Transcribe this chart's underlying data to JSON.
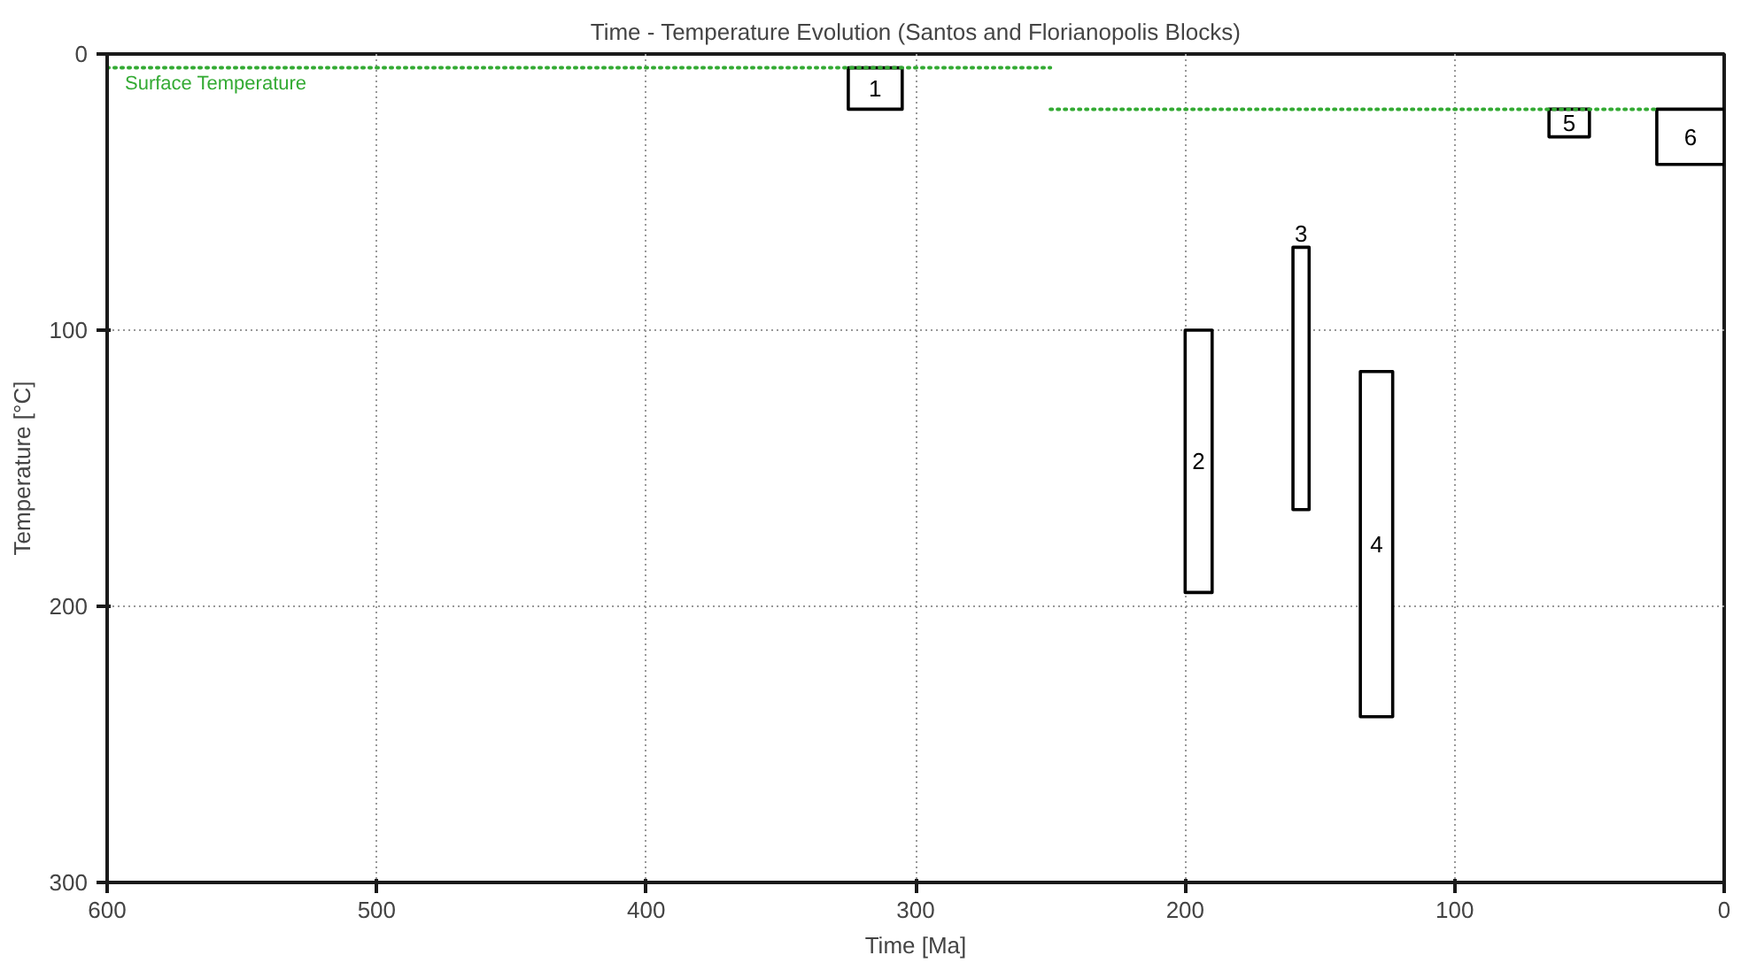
{
  "chart_data": {
    "type": "line",
    "title": "Time - Temperature Evolution (Santos and Florianopolis Blocks)",
    "xlabel": "Time [Ma]",
    "ylabel": "Temperature [°C]",
    "xlim": [
      600,
      0
    ],
    "ylim": [
      300,
      0
    ],
    "xticks": [
      600,
      500,
      400,
      300,
      200,
      100,
      0
    ],
    "yticks": [
      0,
      100,
      200,
      300
    ],
    "grid": true,
    "legend": false,
    "marker": "none",
    "series": [
      {
        "name": "Surface Temperature",
        "color": "#33aa33",
        "line_style": "dotted",
        "x": [
          600,
          250
        ],
        "values": [
          5,
          5
        ]
      },
      {
        "color": "#33aa33",
        "line_style": "dotted",
        "x": [
          250,
          25
        ],
        "values": [
          20,
          20
        ]
      },
      {
        "name": "1",
        "color": "#000000",
        "x": [
          325,
          305
        ],
        "values": [
          null,
          null
        ],
        "lower": [
          5,
          5
        ],
        "upper": [
          20,
          20
        ]
      },
      {
        "name": "2",
        "color": "#000000",
        "x": [
          200,
          190
        ],
        "values": [
          null,
          null
        ],
        "lower": [
          100,
          100
        ],
        "upper": [
          195,
          195
        ]
      },
      {
        "name": "3",
        "color": "#000000",
        "x": [
          160,
          154
        ],
        "values": [
          null,
          null
        ],
        "lower": [
          70,
          70
        ],
        "upper": [
          165,
          165
        ]
      },
      {
        "name": "4",
        "color": "#000000",
        "x": [
          135,
          123
        ],
        "values": [
          null,
          null
        ],
        "lower": [
          115,
          115
        ],
        "upper": [
          240,
          240
        ]
      },
      {
        "name": "5",
        "color": "#000000",
        "x": [
          65,
          50
        ],
        "values": [
          null,
          null
        ],
        "lower": [
          20,
          20
        ],
        "upper": [
          30,
          30
        ]
      },
      {
        "name": "6",
        "color": "#000000",
        "x": [
          25,
          0
        ],
        "values": [
          null,
          null
        ],
        "lower": [
          20,
          20
        ],
        "upper": [
          40,
          40
        ]
      }
    ]
  }
}
